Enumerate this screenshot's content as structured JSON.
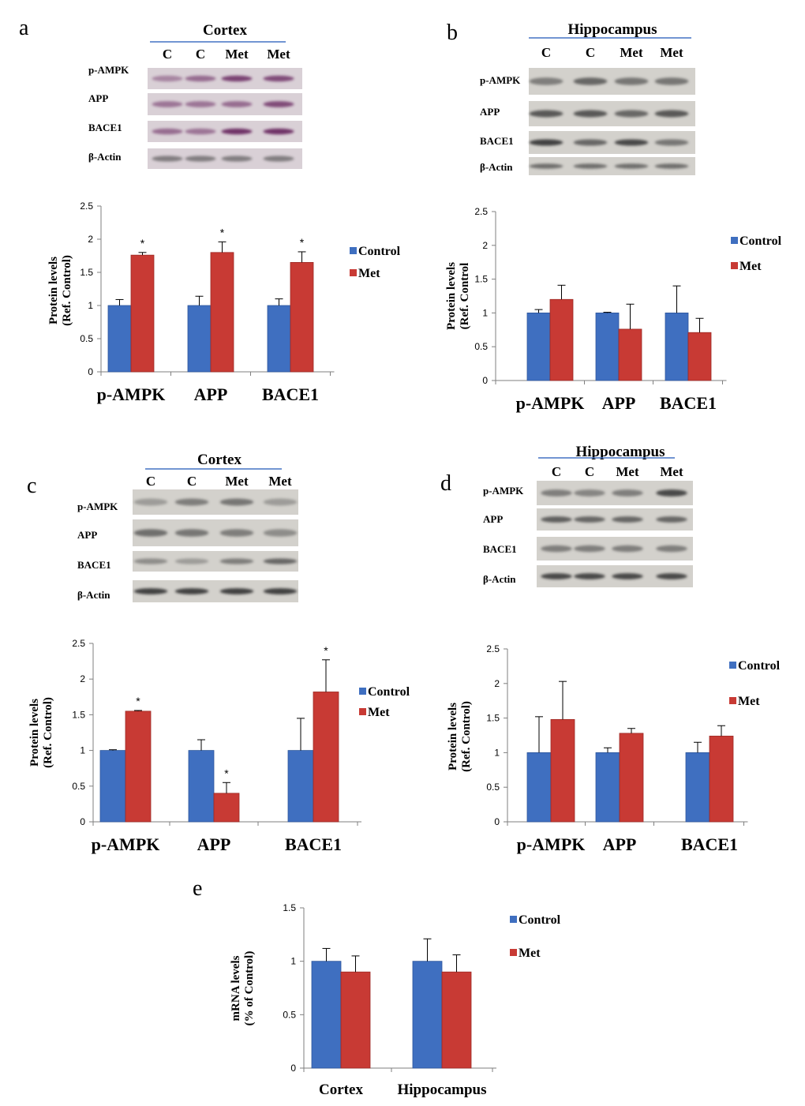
{
  "colors": {
    "control": "#3F6FC0",
    "met": "#C83A34",
    "blot_bg": "#d6d4cf",
    "band": "#2b2b2b"
  },
  "legend": {
    "control": "Control",
    "met": "Met"
  },
  "blots": [
    {
      "panel": "a",
      "title": "Cortex",
      "lanes": [
        "C",
        "C",
        "Met",
        "Met"
      ],
      "rows": [
        "p-AMPK",
        "APP",
        "BACE1",
        "β-Actin"
      ],
      "tint": "purple"
    },
    {
      "panel": "b",
      "title": "Hippocampus",
      "lanes": [
        "C",
        "C",
        "Met",
        "Met"
      ],
      "rows": [
        "p-AMPK",
        "APP",
        "BACE1",
        "β-Actin"
      ],
      "tint": "gray"
    },
    {
      "panel": "c",
      "title": "Cortex",
      "lanes": [
        "C",
        "C",
        "Met",
        "Met"
      ],
      "rows": [
        "p-AMPK",
        "APP",
        "BACE1",
        "β-Actin"
      ],
      "tint": "gray"
    },
    {
      "panel": "d",
      "title": "Hippocampus",
      "lanes": [
        "C",
        "C",
        "Met",
        "Met"
      ],
      "rows": [
        "p-AMPK",
        "APP",
        "BACE1",
        "β-Actin"
      ],
      "tint": "gray"
    }
  ],
  "chart_data": [
    {
      "panel": "a",
      "type": "bar",
      "categories": [
        "p-AMPK",
        "APP",
        "BACE1"
      ],
      "series": [
        {
          "name": "Control",
          "values": [
            1.0,
            1.0,
            1.0
          ],
          "errors": [
            0.09,
            0.14,
            0.1
          ]
        },
        {
          "name": "Met",
          "values": [
            1.76,
            1.8,
            1.65
          ],
          "errors": [
            0.04,
            0.16,
            0.16
          ]
        }
      ],
      "significant": [
        "*",
        "*",
        "*"
      ],
      "ylabel": [
        "Protein levels",
        "(Ref. Control)"
      ],
      "ylim": [
        0,
        2.5
      ],
      "yticks": [
        "0",
        "0.5",
        "1",
        "1.5",
        "2",
        "2.5"
      ]
    },
    {
      "panel": "b",
      "type": "bar",
      "categories": [
        "p-AMPK",
        "APP",
        "BACE1"
      ],
      "series": [
        {
          "name": "Control",
          "values": [
            1.0,
            1.0,
            1.0
          ],
          "errors": [
            0.05,
            0.01,
            0.4
          ]
        },
        {
          "name": "Met",
          "values": [
            1.2,
            0.76,
            0.71
          ],
          "errors": [
            0.21,
            0.37,
            0.21
          ]
        }
      ],
      "significant": [
        "",
        "",
        ""
      ],
      "ylabel": [
        "Protein levels",
        "(Ref. Control"
      ],
      "ylim": [
        0,
        2.5
      ],
      "yticks": [
        "0",
        "0.5",
        "1",
        "1.5",
        "2",
        "2.5"
      ]
    },
    {
      "panel": "c",
      "type": "bar",
      "categories": [
        "p-AMPK",
        "APP",
        "BACE1"
      ],
      "series": [
        {
          "name": "Control",
          "values": [
            1.0,
            1.0,
            1.0
          ],
          "errors": [
            0.01,
            0.15,
            0.45
          ]
        },
        {
          "name": "Met",
          "values": [
            1.55,
            0.4,
            1.82
          ],
          "errors": [
            0.01,
            0.15,
            0.45
          ]
        }
      ],
      "significant": [
        "*",
        "*",
        "*"
      ],
      "ylabel": [
        "Protein levels",
        "(Ref. Control)"
      ],
      "ylim": [
        0,
        2.5
      ],
      "yticks": [
        "0",
        "0.5",
        "1",
        "1.5",
        "2",
        "2.5"
      ]
    },
    {
      "panel": "d",
      "type": "bar",
      "categories": [
        "p-AMPK",
        "APP",
        "BACE1"
      ],
      "series": [
        {
          "name": "Control",
          "values": [
            1.0,
            1.0,
            1.0
          ],
          "errors": [
            0.52,
            0.07,
            0.15
          ]
        },
        {
          "name": "Met",
          "values": [
            1.48,
            1.28,
            1.24
          ],
          "errors": [
            0.55,
            0.07,
            0.15
          ]
        }
      ],
      "significant": [
        "",
        "",
        ""
      ],
      "ylabel": [
        "Protein  levels",
        "(Ref. Control)"
      ],
      "ylim": [
        0,
        2.5
      ],
      "yticks": [
        "0",
        "0.5",
        "1",
        "1.5",
        "2",
        "2.5"
      ]
    },
    {
      "panel": "e",
      "type": "bar",
      "categories": [
        "Cortex",
        "Hippocampus"
      ],
      "series": [
        {
          "name": "Control",
          "values": [
            1.0,
            1.0
          ],
          "errors": [
            0.12,
            0.21
          ]
        },
        {
          "name": "Met",
          "values": [
            0.9,
            0.9
          ],
          "errors": [
            0.15,
            0.16
          ]
        }
      ],
      "significant": [
        "",
        ""
      ],
      "ylabel": [
        "mRNA levels",
        "(% of Control)"
      ],
      "ylim": [
        0,
        1.5
      ],
      "yticks": [
        "0",
        "0.5",
        "1",
        "1.5"
      ]
    }
  ]
}
